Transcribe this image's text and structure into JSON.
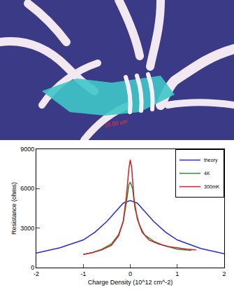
{
  "micrograph": {
    "scale_label": "10.00 μm"
  },
  "chart_data": {
    "type": "line",
    "x_label": "Charge Density (10^12 cm^-2)",
    "y_label": "Resistance (ohms)",
    "xlim": [
      -2,
      2
    ],
    "xticks": [
      -2,
      -1,
      0,
      1,
      2
    ],
    "ylim": [
      0,
      9000
    ],
    "yticks": [
      0,
      3000,
      6000,
      9000
    ],
    "legend": "top right",
    "series": [
      {
        "name": "theory",
        "color": "#2a2ad8",
        "x": [
          -2,
          -1.5,
          -1,
          -0.75,
          -0.5,
          -0.3,
          -0.15,
          0,
          0.15,
          0.3,
          0.5,
          0.75,
          1,
          1.5,
          2
        ],
        "values": [
          1100,
          1500,
          2100,
          2700,
          3500,
          4300,
          4900,
          5100,
          4900,
          4300,
          3500,
          2700,
          2100,
          1450,
          1050
        ]
      },
      {
        "name": "4K",
        "color": "#2e8b3a",
        "x": [
          -1,
          -0.8,
          -0.6,
          -0.4,
          -0.25,
          -0.15,
          -0.08,
          -0.03,
          0,
          0.05,
          0.1,
          0.2,
          0.3,
          0.5,
          0.7,
          1,
          1.3
        ],
        "values": [
          1000,
          1150,
          1400,
          1800,
          2500,
          3500,
          5000,
          6300,
          6500,
          6000,
          4500,
          3200,
          2500,
          2000,
          1700,
          1400,
          1300
        ]
      },
      {
        "name": "300mK",
        "color": "#d62020",
        "x": [
          -1,
          -0.8,
          -0.6,
          -0.4,
          -0.25,
          -0.15,
          -0.08,
          -0.03,
          0,
          0.03,
          0.08,
          0.15,
          0.25,
          0.4,
          0.6,
          0.8,
          1,
          1.2,
          1.4
        ],
        "values": [
          1000,
          1150,
          1350,
          1700,
          2400,
          3500,
          5500,
          7500,
          8200,
          7600,
          5200,
          3700,
          2700,
          2100,
          1800,
          1600,
          1500,
          1400,
          1350
        ]
      }
    ]
  }
}
